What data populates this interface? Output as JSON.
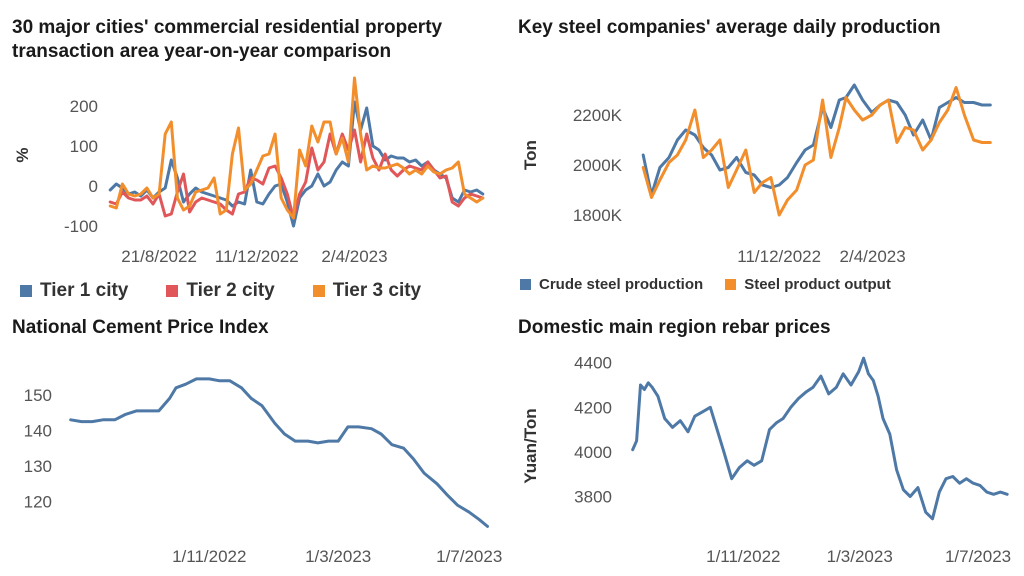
{
  "chart_data": [
    {
      "type": "line",
      "title": "30 major cities' commercial residential property transaction area year-on-year comparison",
      "ylabel": "%",
      "xlabel": "",
      "ylim": [
        -110,
        270
      ],
      "yticks": [
        -100,
        0,
        100,
        200
      ],
      "xrange": [
        "2022-06-20",
        "2023-09-10"
      ],
      "xticks": [
        "21/8/2022",
        "11/12/2022",
        "2/4/2023"
      ],
      "xtick_dates": [
        "2022-08-21",
        "2022-12-11",
        "2023-04-02"
      ],
      "legend_position": "bottom",
      "grid": false,
      "series": [
        {
          "name": "Tier 1 city",
          "color": "#4e79a7",
          "x": [
            "2022-06-26",
            "2022-07-03",
            "2022-07-10",
            "2022-07-17",
            "2022-07-24",
            "2022-07-31",
            "2022-08-07",
            "2022-08-14",
            "2022-08-21",
            "2022-08-28",
            "2022-09-04",
            "2022-09-11",
            "2022-09-18",
            "2022-09-25",
            "2022-10-02",
            "2022-10-09",
            "2022-10-16",
            "2022-10-23",
            "2022-10-30",
            "2022-11-06",
            "2022-11-13",
            "2022-11-20",
            "2022-11-27",
            "2022-12-04",
            "2022-12-11",
            "2022-12-18",
            "2022-12-25",
            "2023-01-01",
            "2023-01-08",
            "2023-01-15",
            "2023-01-22",
            "2023-01-29",
            "2023-02-05",
            "2023-02-12",
            "2023-02-19",
            "2023-02-26",
            "2023-03-05",
            "2023-03-12",
            "2023-03-19",
            "2023-03-26",
            "2023-04-02",
            "2023-04-09",
            "2023-04-16",
            "2023-04-23",
            "2023-04-30",
            "2023-05-07",
            "2023-05-14",
            "2023-05-21",
            "2023-05-28",
            "2023-06-04",
            "2023-06-11",
            "2023-06-18",
            "2023-06-25",
            "2023-07-02",
            "2023-07-09",
            "2023-07-16",
            "2023-07-23",
            "2023-07-30",
            "2023-08-06",
            "2023-08-13",
            "2023-08-20",
            "2023-08-27"
          ],
          "values": [
            -10,
            5,
            -5,
            -20,
            -15,
            -25,
            -10,
            -30,
            -15,
            -5,
            65,
            20,
            -40,
            -20,
            -5,
            -15,
            -20,
            -25,
            -30,
            -35,
            -50,
            -40,
            -45,
            40,
            -40,
            -45,
            -20,
            0,
            5,
            -40,
            -100,
            -30,
            -10,
            0,
            30,
            0,
            10,
            40,
            60,
            50,
            210,
            140,
            195,
            100,
            90,
            65,
            75,
            70,
            70,
            60,
            65,
            50,
            60,
            40,
            30,
            20,
            -30,
            -40,
            -10,
            -15,
            -10,
            -20
          ]
        },
        {
          "name": "Tier 2 city",
          "color": "#e15759",
          "x": [
            "2022-06-26",
            "2022-07-03",
            "2022-07-10",
            "2022-07-17",
            "2022-07-24",
            "2022-07-31",
            "2022-08-07",
            "2022-08-14",
            "2022-08-21",
            "2022-08-28",
            "2022-09-04",
            "2022-09-11",
            "2022-09-18",
            "2022-09-25",
            "2022-10-02",
            "2022-10-09",
            "2022-10-16",
            "2022-10-23",
            "2022-10-30",
            "2022-11-06",
            "2022-11-13",
            "2022-11-20",
            "2022-11-27",
            "2022-12-04",
            "2022-12-11",
            "2022-12-18",
            "2022-12-25",
            "2023-01-01",
            "2023-01-08",
            "2023-01-15",
            "2023-01-22",
            "2023-01-29",
            "2023-02-05",
            "2023-02-12",
            "2023-02-19",
            "2023-02-26",
            "2023-03-05",
            "2023-03-12",
            "2023-03-19",
            "2023-03-26",
            "2023-04-02",
            "2023-04-09",
            "2023-04-16",
            "2023-04-23",
            "2023-04-30",
            "2023-05-07",
            "2023-05-14",
            "2023-05-21",
            "2023-05-28",
            "2023-06-04",
            "2023-06-11",
            "2023-06-18",
            "2023-06-25",
            "2023-07-02",
            "2023-07-09",
            "2023-07-16",
            "2023-07-23",
            "2023-07-30",
            "2023-08-06",
            "2023-08-13",
            "2023-08-20",
            "2023-08-27"
          ],
          "values": [
            -40,
            -45,
            -15,
            -30,
            -35,
            -35,
            -25,
            -45,
            -20,
            -75,
            -70,
            -15,
            30,
            -65,
            -40,
            -30,
            -35,
            -40,
            -45,
            -60,
            -70,
            -20,
            -15,
            20,
            15,
            5,
            45,
            50,
            20,
            -20,
            -80,
            -20,
            10,
            95,
            40,
            60,
            130,
            80,
            130,
            90,
            140,
            60,
            130,
            70,
            40,
            80,
            40,
            25,
            40,
            50,
            45,
            40,
            60,
            40,
            20,
            25,
            -40,
            -50,
            -30,
            -20,
            -25,
            -30
          ]
        },
        {
          "name": "Tier 3 city",
          "color": "#f28e2b",
          "x": [
            "2022-06-26",
            "2022-07-03",
            "2022-07-10",
            "2022-07-17",
            "2022-07-24",
            "2022-07-31",
            "2022-08-07",
            "2022-08-14",
            "2022-08-21",
            "2022-08-28",
            "2022-09-04",
            "2022-09-11",
            "2022-09-18",
            "2022-09-25",
            "2022-10-02",
            "2022-10-09",
            "2022-10-16",
            "2022-10-23",
            "2022-10-30",
            "2022-11-06",
            "2022-11-13",
            "2022-11-20",
            "2022-11-27",
            "2022-12-04",
            "2022-12-11",
            "2022-12-18",
            "2022-12-25",
            "2023-01-01",
            "2023-01-08",
            "2023-01-15",
            "2023-01-22",
            "2023-01-29",
            "2023-02-05",
            "2023-02-12",
            "2023-02-19",
            "2023-02-26",
            "2023-03-05",
            "2023-03-12",
            "2023-03-19",
            "2023-03-26",
            "2023-04-02",
            "2023-04-09",
            "2023-04-16",
            "2023-04-23",
            "2023-04-30",
            "2023-05-07",
            "2023-05-14",
            "2023-05-21",
            "2023-05-28",
            "2023-06-04",
            "2023-06-11",
            "2023-06-18",
            "2023-06-25",
            "2023-07-02",
            "2023-07-09",
            "2023-07-16",
            "2023-07-23",
            "2023-07-30",
            "2023-08-06",
            "2023-08-13",
            "2023-08-20",
            "2023-08-27"
          ],
          "values": [
            -50,
            -55,
            5,
            -20,
            -25,
            -20,
            -5,
            -30,
            -20,
            130,
            160,
            -30,
            -60,
            -50,
            -15,
            -10,
            -5,
            20,
            -70,
            -60,
            80,
            145,
            -10,
            5,
            40,
            75,
            80,
            130,
            -30,
            -60,
            -80,
            90,
            50,
            150,
            110,
            160,
            160,
            80,
            120,
            60,
            270,
            130,
            40,
            50,
            45,
            45,
            50,
            55,
            45,
            30,
            40,
            30,
            50,
            35,
            30,
            40,
            45,
            60,
            -20,
            -30,
            -40,
            -30
          ]
        }
      ]
    },
    {
      "type": "line",
      "title": "Key steel companies' average daily production",
      "ylabel": "Ton",
      "xlabel": "",
      "ylim": [
        1740000,
        2340000
      ],
      "yticks": [
        1800000,
        2000000,
        2200000
      ],
      "ytick_labels": [
        "1800K",
        "2000K",
        "2200K"
      ],
      "xrange": [
        "2022-06-20",
        "2023-09-10"
      ],
      "xticks": [
        "11/12/2022",
        "2/4/2023"
      ],
      "xtick_dates": [
        "2022-12-11",
        "2023-04-02"
      ],
      "legend_position": "bottom",
      "grid": false,
      "series": [
        {
          "name": "Crude steel production",
          "color": "#4e79a7",
          "x": [
            "2022-07-01",
            "2022-07-11",
            "2022-07-21",
            "2022-08-01",
            "2022-08-11",
            "2022-08-21",
            "2022-09-01",
            "2022-09-11",
            "2022-09-21",
            "2022-10-01",
            "2022-10-11",
            "2022-10-21",
            "2022-11-01",
            "2022-11-11",
            "2022-11-21",
            "2022-12-01",
            "2022-12-11",
            "2022-12-21",
            "2023-01-01",
            "2023-01-11",
            "2023-01-21",
            "2023-02-01",
            "2023-02-11",
            "2023-02-21",
            "2023-03-01",
            "2023-03-11",
            "2023-03-21",
            "2023-04-01",
            "2023-04-11",
            "2023-04-21",
            "2023-05-01",
            "2023-05-11",
            "2023-05-21",
            "2023-06-01",
            "2023-06-11",
            "2023-06-21",
            "2023-07-01",
            "2023-07-11",
            "2023-07-21",
            "2023-08-01",
            "2023-08-11",
            "2023-08-21"
          ],
          "values": [
            2040000,
            1880000,
            1990000,
            2030000,
            2100000,
            2140000,
            2120000,
            2070000,
            2040000,
            1980000,
            1990000,
            2030000,
            1970000,
            1960000,
            1920000,
            1910000,
            1920000,
            1950000,
            2010000,
            2060000,
            2080000,
            2230000,
            2150000,
            2260000,
            2270000,
            2320000,
            2260000,
            2210000,
            2240000,
            2260000,
            2250000,
            2200000,
            2120000,
            2180000,
            2100000,
            2230000,
            2250000,
            2270000,
            2250000,
            2250000,
            2240000,
            2240000
          ]
        },
        {
          "name": "Steel product output",
          "color": "#f28e2b",
          "x": [
            "2022-07-01",
            "2022-07-11",
            "2022-07-21",
            "2022-08-01",
            "2022-08-11",
            "2022-08-21",
            "2022-09-01",
            "2022-09-11",
            "2022-09-21",
            "2022-10-01",
            "2022-10-11",
            "2022-10-21",
            "2022-11-01",
            "2022-11-11",
            "2022-11-21",
            "2022-12-01",
            "2022-12-11",
            "2022-12-21",
            "2023-01-01",
            "2023-01-11",
            "2023-01-21",
            "2023-02-01",
            "2023-02-11",
            "2023-02-21",
            "2023-03-01",
            "2023-03-11",
            "2023-03-21",
            "2023-04-01",
            "2023-04-11",
            "2023-04-21",
            "2023-05-01",
            "2023-05-11",
            "2023-05-21",
            "2023-06-01",
            "2023-06-11",
            "2023-06-21",
            "2023-07-01",
            "2023-07-11",
            "2023-07-21",
            "2023-08-01",
            "2023-08-11",
            "2023-08-21"
          ],
          "values": [
            1990000,
            1870000,
            1940000,
            2010000,
            2040000,
            2100000,
            2220000,
            2030000,
            2060000,
            2100000,
            1910000,
            1980000,
            2060000,
            1890000,
            1930000,
            1950000,
            1800000,
            1860000,
            1900000,
            2000000,
            2020000,
            2260000,
            2030000,
            2150000,
            2270000,
            2220000,
            2180000,
            2200000,
            2240000,
            2260000,
            2090000,
            2150000,
            2140000,
            2060000,
            2100000,
            2170000,
            2220000,
            2310000,
            2200000,
            2100000,
            2090000,
            2090000
          ]
        }
      ]
    },
    {
      "type": "line",
      "title": "National Cement Price Index",
      "ylabel": "",
      "xlabel": "",
      "ylim": [
        112,
        157
      ],
      "yticks": [
        120,
        130,
        140,
        150
      ],
      "xrange": [
        "2022-06-15",
        "2023-07-25"
      ],
      "xticks": [
        "1/11/2022",
        "1/3/2023",
        "1/7/2023"
      ],
      "xtick_dates": [
        "2022-11-01",
        "2023-03-01",
        "2023-07-01"
      ],
      "grid": false,
      "series": [
        {
          "name": "",
          "color": "#4e79a7",
          "x": [
            "2022-06-25",
            "2022-07-05",
            "2022-07-15",
            "2022-07-25",
            "2022-08-05",
            "2022-08-15",
            "2022-08-25",
            "2022-09-05",
            "2022-09-15",
            "2022-09-25",
            "2022-10-01",
            "2022-10-10",
            "2022-10-20",
            "2022-11-01",
            "2022-11-10",
            "2022-11-20",
            "2022-12-01",
            "2022-12-10",
            "2022-12-20",
            "2023-01-01",
            "2023-01-10",
            "2023-01-20",
            "2023-02-01",
            "2023-02-10",
            "2023-02-20",
            "2023-03-01",
            "2023-03-10",
            "2023-03-20",
            "2023-04-01",
            "2023-04-10",
            "2023-04-20",
            "2023-05-01",
            "2023-05-10",
            "2023-05-20",
            "2023-06-01",
            "2023-06-10",
            "2023-06-20",
            "2023-07-01",
            "2023-07-10",
            "2023-07-18"
          ],
          "values": [
            143,
            142.5,
            142.5,
            143,
            143,
            144.5,
            145.5,
            145.5,
            145.5,
            149,
            152,
            153,
            154.5,
            154.5,
            154,
            154,
            152,
            149,
            147,
            142,
            139,
            137,
            137,
            136.5,
            137,
            137,
            141,
            141,
            140.5,
            139,
            136,
            135,
            132,
            128,
            125,
            122,
            119,
            117,
            115,
            113
          ]
        }
      ]
    },
    {
      "type": "line",
      "title": "Domestic main region rebar prices",
      "ylabel": "Yuan/Ton",
      "xlabel": "",
      "ylim": [
        3650,
        4430
      ],
      "yticks": [
        3800,
        4000,
        4200,
        4400
      ],
      "xrange": [
        "2022-07-01",
        "2023-08-05"
      ],
      "xticks": [
        "1/11/2022",
        "1/3/2023",
        "1/7/2023"
      ],
      "xtick_dates": [
        "2022-11-01",
        "2023-03-01",
        "2023-07-01"
      ],
      "grid": false,
      "series": [
        {
          "name": "",
          "color": "#4e79a7",
          "x": [
            "2022-07-10",
            "2022-07-14",
            "2022-07-18",
            "2022-07-22",
            "2022-07-26",
            "2022-07-30",
            "2022-08-05",
            "2022-08-12",
            "2022-08-20",
            "2022-08-28",
            "2022-09-05",
            "2022-09-12",
            "2022-09-20",
            "2022-09-28",
            "2022-10-05",
            "2022-10-12",
            "2022-10-20",
            "2022-10-28",
            "2022-11-05",
            "2022-11-12",
            "2022-11-20",
            "2022-11-28",
            "2022-12-05",
            "2022-12-12",
            "2022-12-20",
            "2022-12-28",
            "2023-01-05",
            "2023-01-12",
            "2023-01-20",
            "2023-01-28",
            "2023-02-05",
            "2023-02-12",
            "2023-02-20",
            "2023-02-28",
            "2023-03-05",
            "2023-03-10",
            "2023-03-15",
            "2023-03-20",
            "2023-03-25",
            "2023-04-01",
            "2023-04-08",
            "2023-04-15",
            "2023-04-22",
            "2023-04-30",
            "2023-05-08",
            "2023-05-15",
            "2023-05-22",
            "2023-05-29",
            "2023-06-05",
            "2023-06-12",
            "2023-06-19",
            "2023-06-26",
            "2023-07-03",
            "2023-07-10",
            "2023-07-17",
            "2023-07-24",
            "2023-07-31"
          ],
          "values": [
            4010,
            4050,
            4300,
            4280,
            4310,
            4290,
            4250,
            4150,
            4110,
            4140,
            4090,
            4160,
            4180,
            4200,
            4100,
            4000,
            3880,
            3930,
            3960,
            3940,
            3960,
            4100,
            4130,
            4150,
            4200,
            4240,
            4270,
            4290,
            4340,
            4260,
            4290,
            4350,
            4300,
            4360,
            4420,
            4350,
            4320,
            4250,
            4150,
            4080,
            3920,
            3830,
            3800,
            3840,
            3730,
            3700,
            3820,
            3880,
            3890,
            3860,
            3880,
            3860,
            3850,
            3820,
            3810,
            3820,
            3810
          ]
        }
      ]
    }
  ]
}
